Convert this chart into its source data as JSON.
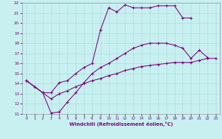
{
  "xlabel": "Windchill (Refroidissement éolien,°C)",
  "bg_color": "#c8f0f0",
  "grid_color": "#aadcdc",
  "line_color": "#800080",
  "xlim": [
    -0.5,
    23.5
  ],
  "ylim": [
    11,
    22
  ],
  "xticks": [
    0,
    1,
    2,
    3,
    4,
    5,
    6,
    7,
    8,
    9,
    10,
    11,
    12,
    13,
    14,
    15,
    16,
    17,
    18,
    19,
    20,
    21,
    22,
    23
  ],
  "yticks": [
    11,
    12,
    13,
    14,
    15,
    16,
    17,
    18,
    19,
    20,
    21,
    22
  ],
  "top_x": [
    0,
    1,
    2,
    3,
    4,
    5,
    6,
    7,
    8,
    9,
    10,
    11,
    12,
    13,
    14,
    15,
    16,
    17,
    18,
    19,
    20
  ],
  "top_y": [
    14.3,
    13.7,
    13.1,
    13.1,
    14.1,
    14.3,
    15.0,
    15.6,
    16.0,
    19.3,
    21.5,
    21.1,
    21.8,
    21.5,
    21.5,
    21.5,
    21.7,
    21.7,
    21.7,
    20.5,
    20.5
  ],
  "mid_x": [
    0,
    1,
    2,
    3,
    4,
    5,
    6,
    7,
    8,
    9,
    10,
    11,
    12,
    13,
    14,
    15,
    16,
    17,
    18,
    19,
    20,
    21,
    22
  ],
  "mid_y": [
    14.3,
    13.7,
    13.1,
    11.1,
    11.2,
    12.2,
    13.1,
    14.1,
    15.0,
    15.6,
    16.0,
    16.5,
    17.0,
    17.5,
    17.8,
    18.0,
    18.0,
    18.0,
    17.8,
    17.5,
    16.5,
    17.3,
    16.6
  ],
  "bot_x": [
    0,
    2,
    3,
    4,
    5,
    6,
    7,
    8,
    9,
    10,
    11,
    12,
    13,
    14,
    15,
    16,
    17,
    18,
    19,
    20,
    21,
    22,
    23
  ],
  "bot_y": [
    14.3,
    13.1,
    12.5,
    13.0,
    13.3,
    13.7,
    14.0,
    14.3,
    14.5,
    14.8,
    15.0,
    15.3,
    15.5,
    15.7,
    15.8,
    15.9,
    16.0,
    16.1,
    16.1,
    16.1,
    16.3,
    16.5,
    16.5
  ]
}
